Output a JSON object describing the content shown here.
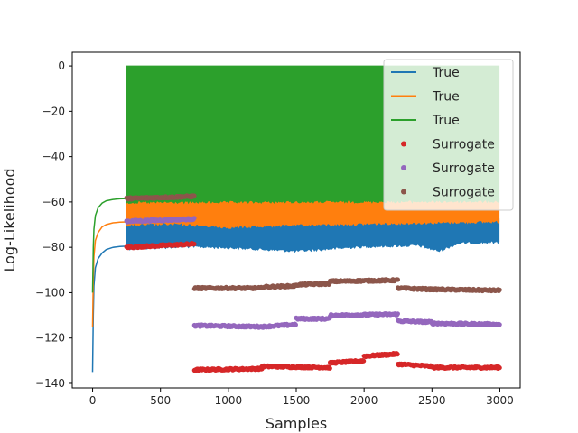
{
  "chart_data": {
    "type": "line",
    "title": "",
    "xlabel": "Samples",
    "ylabel": "Log-Likelihood",
    "xlim": [
      -150,
      3150
    ],
    "ylim": [
      -142,
      6
    ],
    "xticks": [
      0,
      500,
      1000,
      1500,
      2000,
      2500,
      3000
    ],
    "yticks": [
      0,
      -20,
      -40,
      -60,
      -80,
      -100,
      -120,
      -140
    ],
    "xtick_labels": [
      "0",
      "500",
      "1000",
      "1500",
      "2000",
      "2500",
      "3000"
    ],
    "ytick_labels": [
      "0",
      "−20",
      "−40",
      "−60",
      "−80",
      "−100",
      "−120",
      "−140"
    ],
    "grid": false,
    "legend_position": "top-right",
    "series": [
      {
        "name": "True",
        "kind": "line",
        "color": "#1f77b4",
        "burnin": {
          "x": [
            0,
            5,
            10,
            20,
            40,
            70,
            100,
            150,
            200,
            250
          ],
          "y": [
            -135,
            -110,
            -97,
            -89,
            -85,
            -82.5,
            -81,
            -80,
            -79.6,
            -79.5
          ]
        },
        "band": {
          "x_start": 250,
          "x_end": 3000,
          "upper": -67.5,
          "lower": [
            [
              250,
              -80
            ],
            [
              700,
              -79
            ],
            [
              1000,
              -79.5
            ],
            [
              1500,
              -81
            ],
            [
              2000,
              -79
            ],
            [
              2400,
              -78.5
            ],
            [
              2550,
              -81
            ],
            [
              2700,
              -77.5
            ],
            [
              3000,
              -77
            ]
          ]
        }
      },
      {
        "name": "True",
        "kind": "line",
        "color": "#ff7f0e",
        "burnin": {
          "x": [
            0,
            5,
            10,
            20,
            40,
            70,
            100,
            150,
            200,
            250
          ],
          "y": [
            -115,
            -94,
            -84,
            -77,
            -73.5,
            -71,
            -70,
            -69.2,
            -68.9,
            -68.8
          ]
        },
        "band": {
          "x_start": 250,
          "x_end": 3000,
          "upper": -58.5,
          "lower": [
            [
              250,
              -69.5
            ],
            [
              600,
              -69
            ],
            [
              1000,
              -70.5
            ],
            [
              1500,
              -69.5
            ],
            [
              2000,
              -69
            ],
            [
              2500,
              -68.5
            ],
            [
              3000,
              -68
            ]
          ]
        }
      },
      {
        "name": "True",
        "kind": "line",
        "color": "#2ca02c",
        "burnin": {
          "x": [
            0,
            5,
            10,
            20,
            40,
            70,
            100,
            150,
            200,
            250
          ],
          "y": [
            -100,
            -80,
            -72,
            -66,
            -62.5,
            -60.5,
            -59.5,
            -58.9,
            -58.6,
            -58.5
          ]
        },
        "band": {
          "x_start": 250,
          "x_end": 3000,
          "upper": 0,
          "lower": [
            [
              250,
              -59.5
            ],
            [
              3000,
              -59
            ]
          ]
        }
      },
      {
        "name": "Surrogate",
        "kind": "points",
        "color": "#d62728",
        "segments": [
          {
            "x": [
              250,
              750
            ],
            "y": [
              -80,
              -78.5
            ]
          },
          {
            "x": [
              750,
              1250
            ],
            "y": [
              -134,
              -133.5
            ]
          },
          {
            "x": [
              1250,
              1750
            ],
            "y": [
              -132.5,
              -133
            ]
          },
          {
            "x": [
              1750,
              2000
            ],
            "y": [
              -131,
              -130
            ]
          },
          {
            "x": [
              2000,
              2250
            ],
            "y": [
              -128,
              -127
            ]
          },
          {
            "x": [
              2250,
              2500
            ],
            "y": [
              -131.5,
              -132.5
            ]
          },
          {
            "x": [
              2500,
              3000
            ],
            "y": [
              -133,
              -133
            ]
          }
        ]
      },
      {
        "name": "Surrogate",
        "kind": "points",
        "color": "#9467bd",
        "segments": [
          {
            "x": [
              250,
              750
            ],
            "y": [
              -68.5,
              -67.5
            ]
          },
          {
            "x": [
              750,
              1250
            ],
            "y": [
              -114.5,
              -115
            ]
          },
          {
            "x": [
              1250,
              1500
            ],
            "y": [
              -115,
              -114
            ]
          },
          {
            "x": [
              1500,
              1750
            ],
            "y": [
              -111.5,
              -111.5
            ]
          },
          {
            "x": [
              1750,
              2250
            ],
            "y": [
              -110,
              -109.5
            ]
          },
          {
            "x": [
              2250,
              2500
            ],
            "y": [
              -112.5,
              -113
            ]
          },
          {
            "x": [
              2500,
              3000
            ],
            "y": [
              -113.5,
              -114
            ]
          }
        ]
      },
      {
        "name": "Surrogate",
        "kind": "points",
        "color": "#8c564b",
        "segments": [
          {
            "x": [
              250,
              750
            ],
            "y": [
              -58.5,
              -57.5
            ]
          },
          {
            "x": [
              750,
              1250
            ],
            "y": [
              -98,
              -98
            ]
          },
          {
            "x": [
              1250,
              1500
            ],
            "y": [
              -97.5,
              -97
            ]
          },
          {
            "x": [
              1500,
              1750
            ],
            "y": [
              -96.5,
              -96
            ]
          },
          {
            "x": [
              1750,
              2250
            ],
            "y": [
              -95,
              -94.5
            ]
          },
          {
            "x": [
              2250,
              2500
            ],
            "y": [
              -98,
              -98.5
            ]
          },
          {
            "x": [
              2500,
              3000
            ],
            "y": [
              -98.5,
              -99
            ]
          }
        ]
      }
    ]
  }
}
